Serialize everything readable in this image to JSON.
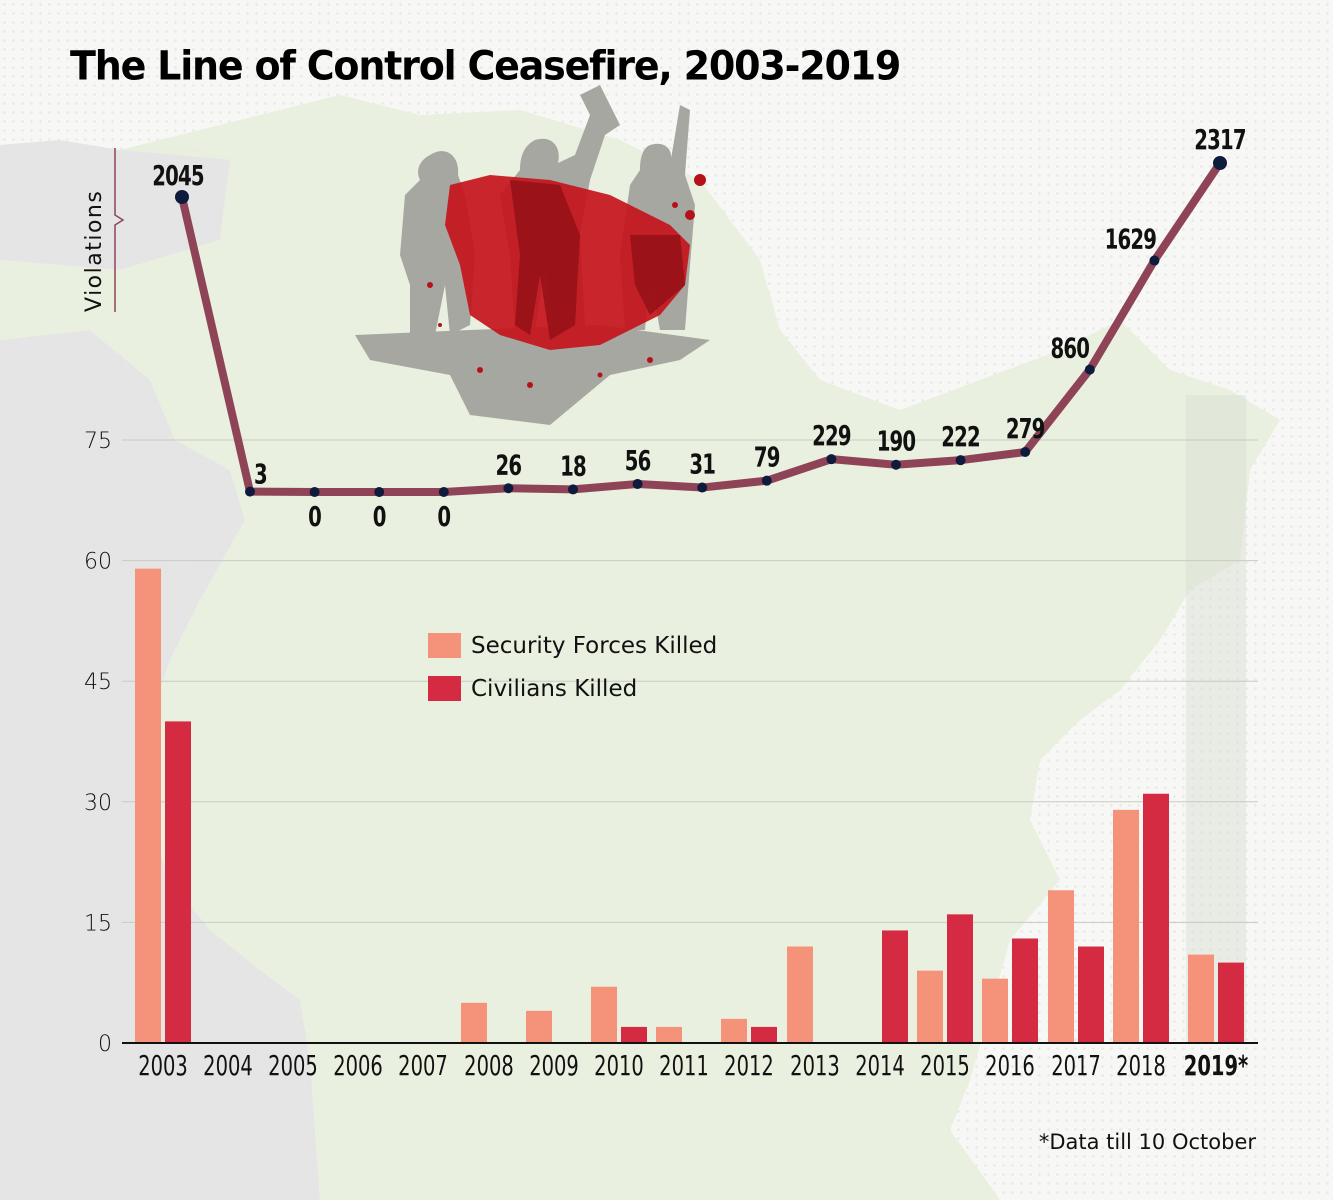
{
  "title": "The Line of Control Ceasefire, 2003-2019",
  "footnote": "*Data till 10 October",
  "colors": {
    "security_forces": "#F5937A",
    "civilians": "#D42B42",
    "violations_line": "#8E4456",
    "violations_dot": "#0F1B3C",
    "gridline": "#c8cbc4",
    "map_green": "#e7efdc",
    "map_grey": "#e1e1e3"
  },
  "illustration": {
    "icon": "soldier-silhouettes-blood-splatter-icon"
  },
  "chart_data": [
    {
      "type": "line",
      "title": "Ceasefire Violations",
      "ylabel": "Violations",
      "x": [
        "2003",
        "2004",
        "2005",
        "2006",
        "2007",
        "2008",
        "2009",
        "2010",
        "2011",
        "2012",
        "2013",
        "2014",
        "2015",
        "2016",
        "2017",
        "2018",
        "2019*"
      ],
      "series": [
        {
          "name": "Violations",
          "values": [
            2045,
            3,
            0,
            0,
            0,
            26,
            18,
            56,
            31,
            79,
            229,
            190,
            222,
            279,
            860,
            1629,
            2317
          ],
          "labels": [
            "2045",
            "3",
            "0",
            "0",
            "0",
            "26",
            "18",
            "56",
            "31",
            "79",
            "229",
            "190",
            "222",
            "279",
            "860",
            "1629",
            "2317"
          ]
        }
      ],
      "ylim": [
        0,
        2317
      ],
      "scale_note": "non-linear, axis broken"
    },
    {
      "type": "bar",
      "title": "",
      "xlabel": "",
      "ylabel": "",
      "categories": [
        "2003",
        "2004",
        "2005",
        "2006",
        "2007",
        "2008",
        "2009",
        "2010",
        "2011",
        "2012",
        "2013",
        "2014",
        "2015",
        "2016",
        "2017",
        "2018",
        "2019*"
      ],
      "highlight_category": "2019*",
      "series": [
        {
          "name": "Security Forces Killed",
          "values": [
            59,
            0,
            0,
            0,
            0,
            5,
            4,
            7,
            2,
            3,
            12,
            0,
            9,
            8,
            19,
            29,
            11
          ]
        },
        {
          "name": "Civilians Killed",
          "values": [
            40,
            0,
            0,
            0,
            0,
            0,
            0,
            2,
            0,
            2,
            0,
            14,
            16,
            13,
            12,
            31,
            10
          ]
        }
      ],
      "yticks": [
        0,
        15,
        30,
        45,
        60,
        75
      ],
      "ylim": [
        0,
        75
      ],
      "grid": true,
      "legend": {
        "position": "upper-center",
        "entries": [
          "Security Forces Killed",
          "Civilians Killed"
        ]
      }
    }
  ]
}
